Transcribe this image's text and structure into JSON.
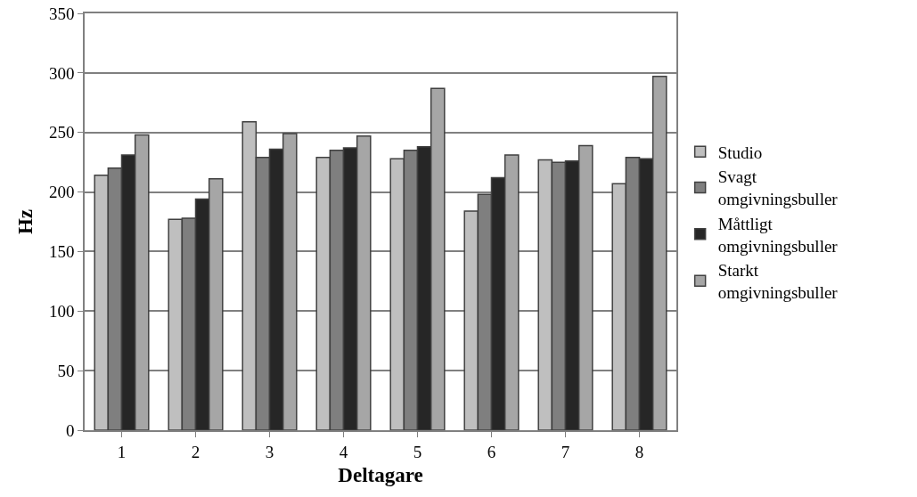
{
  "chart_data": {
    "type": "bar",
    "xlabel": "Deltagare",
    "ylabel": "Hz",
    "categories": [
      "1",
      "2",
      "3",
      "4",
      "5",
      "6",
      "7",
      "8"
    ],
    "series": [
      {
        "name": "Studio",
        "color": "#bfbfbf",
        "values": [
          214,
          177,
          259,
          229,
          228,
          184,
          227,
          207
        ]
      },
      {
        "name": "Svagt omgivningsbuller",
        "color": "#7f7f7f",
        "values": [
          220,
          178,
          229,
          235,
          235,
          198,
          225,
          229
        ]
      },
      {
        "name": "Måttligt omgivningsbuller",
        "color": "#262626",
        "values": [
          231,
          194,
          236,
          237,
          238,
          212,
          226,
          228
        ]
      },
      {
        "name": "Starkt omgivningsbuller",
        "color": "#a6a6a6",
        "values": [
          248,
          211,
          249,
          247,
          287,
          231,
          239,
          297
        ]
      }
    ],
    "ylim": [
      0,
      350
    ],
    "yticks": [
      0,
      50,
      100,
      150,
      200,
      250,
      300,
      350
    ],
    "grid": "y",
    "legend": "right"
  }
}
